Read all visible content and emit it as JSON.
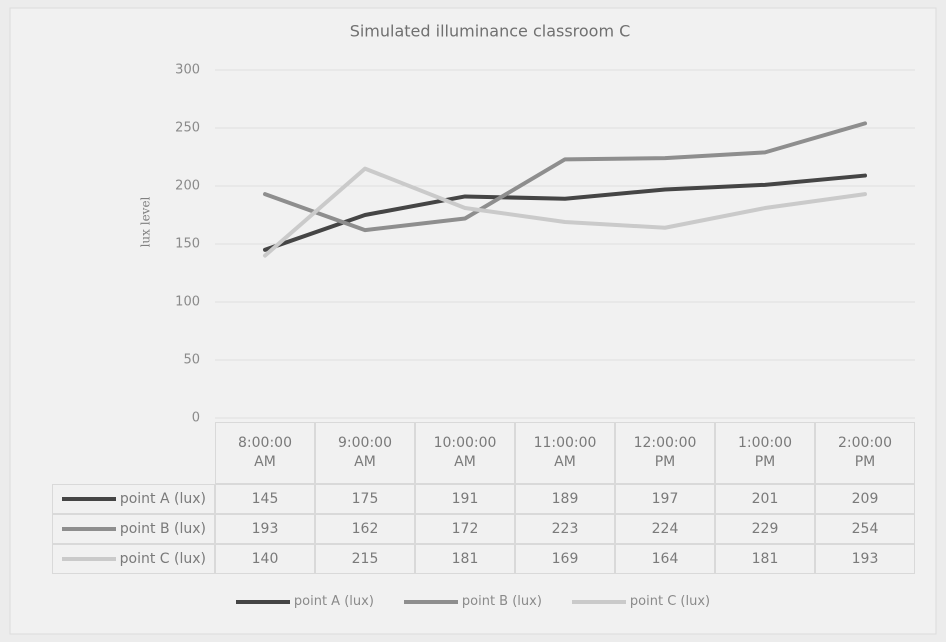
{
  "chart_data": {
    "type": "line",
    "title": "Simulated illuminance classroom C",
    "y_label": "lux level",
    "categories": [
      "8:00:00 AM",
      "9:00:00 AM",
      "10:00:00 AM",
      "11:00:00 AM",
      "12:00:00 PM",
      "1:00:00 PM",
      "2:00:00 PM"
    ],
    "series": [
      {
        "name": "point A (lux)",
        "color": "#454545",
        "values": [
          145,
          175,
          191,
          189,
          197,
          201,
          209
        ]
      },
      {
        "name": "point B (lux)",
        "color": "#8e8e8e",
        "values": [
          193,
          162,
          172,
          223,
          224,
          229,
          254
        ]
      },
      {
        "name": "point C (lux)",
        "color": "#cacaca",
        "values": [
          140,
          215,
          181,
          169,
          164,
          181,
          193
        ]
      }
    ],
    "ylim": [
      0,
      300
    ],
    "yticks": [
      0,
      50,
      100,
      150,
      200,
      250,
      300
    ],
    "grid": true,
    "legend": "bottom",
    "data_table": true
  }
}
